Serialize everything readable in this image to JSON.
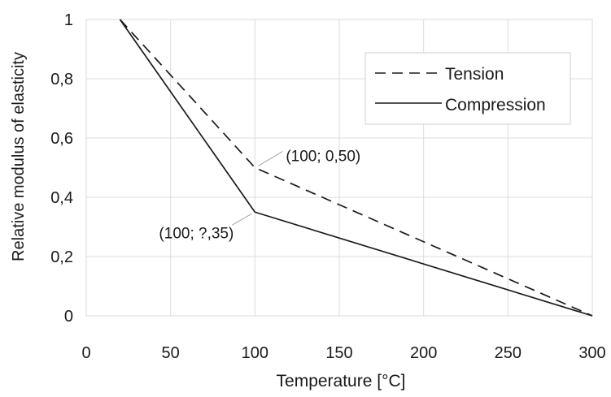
{
  "chart_data": {
    "type": "line",
    "xlabel": "Temperature [°C]",
    "ylabel": "Relative modulus of elasticity",
    "xlim": [
      0,
      300
    ],
    "ylim": [
      0,
      1
    ],
    "xticks": [
      0,
      50,
      100,
      150,
      200,
      250,
      300
    ],
    "xtick_labels": [
      "0",
      "50",
      "100",
      "150",
      "200",
      "250",
      "300"
    ],
    "yticks": [
      0,
      0.2,
      0.4,
      0.6,
      0.8,
      1
    ],
    "ytick_labels": [
      "0",
      "0,2",
      "0,4",
      "0,6",
      "0,8",
      "1"
    ],
    "grid": true,
    "legend_position": "top-right",
    "series": [
      {
        "name": "Tension",
        "style": "dashed",
        "color": "#1a1a1a",
        "x": [
          20,
          100,
          300
        ],
        "y": [
          1,
          0.5,
          0
        ]
      },
      {
        "name": "Compression",
        "style": "solid",
        "color": "#1a1a1a",
        "x": [
          20,
          100,
          300
        ],
        "y": [
          1,
          0.35,
          0
        ]
      }
    ],
    "annotations": [
      {
        "text": "(100; 0,50)",
        "x": 100,
        "y": 0.5
      },
      {
        "text": "(100; ?,35)",
        "x": 100,
        "y": 0.35
      }
    ]
  }
}
